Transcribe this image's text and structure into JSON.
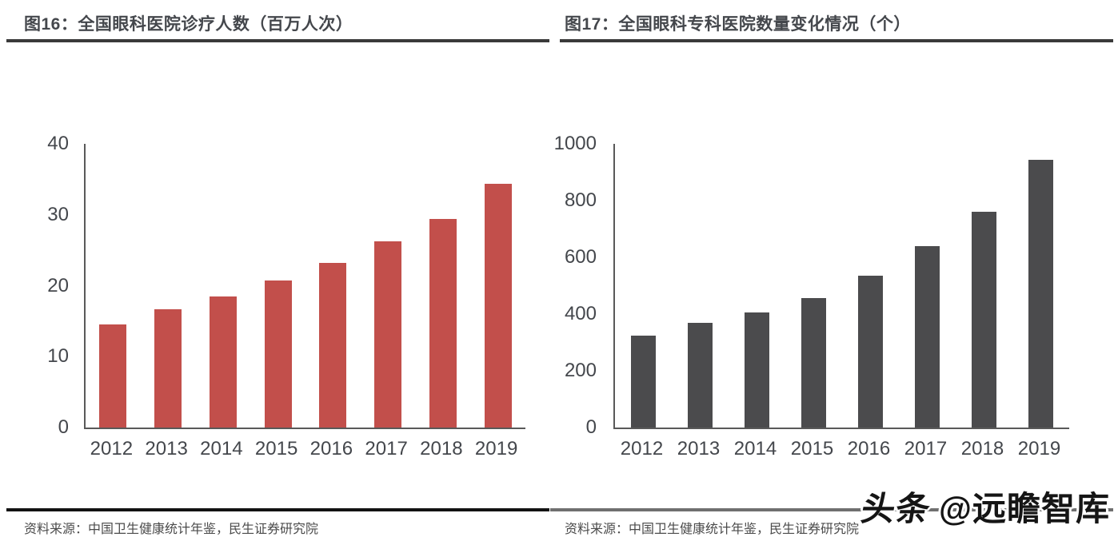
{
  "figures": [
    {
      "title": "图16：全国眼科医院诊疗人数（百万人次）",
      "source_label": "资料来源：中国卫生健康统计年鉴，民生证券研究院"
    },
    {
      "title": "图17：全国眼科专科医院数量变化情况（个）",
      "source_label": "资料来源：中国卫生健康统计年鉴，民生证券研究院"
    }
  ],
  "chart_data": [
    {
      "type": "bar",
      "title": "图16：全国眼科医院诊疗人数（百万人次）",
      "categories": [
        "2012",
        "2013",
        "2014",
        "2015",
        "2016",
        "2017",
        "2018",
        "2019"
      ],
      "values": [
        14.5,
        16.7,
        18.5,
        20.7,
        23.2,
        26.3,
        29.4,
        34.4
      ],
      "xlabel": "",
      "ylabel": "",
      "ylim": [
        0,
        40
      ],
      "yticks": [
        0,
        10,
        20,
        30,
        40
      ],
      "bar_color": "#c24f4b",
      "grid": false,
      "legend": "none"
    },
    {
      "type": "bar",
      "title": "图17：全国眼科专科医院数量变化情况（个）",
      "categories": [
        "2012",
        "2013",
        "2014",
        "2015",
        "2016",
        "2017",
        "2018",
        "2019"
      ],
      "values": [
        325,
        370,
        405,
        455,
        535,
        640,
        760,
        945
      ],
      "xlabel": "",
      "ylabel": "",
      "ylim": [
        0,
        1000
      ],
      "yticks": [
        0,
        200,
        400,
        600,
        800,
        1000
      ],
      "bar_color": "#4b4b4d",
      "grid": false,
      "legend": "none"
    }
  ],
  "watermark": {
    "prefix": "头条",
    "handle": "@远瞻智库"
  },
  "colors": {
    "left_bar": "#c24f4b",
    "right_bar": "#4b4b4d",
    "axis_line": "#595959",
    "title_text": "#44474c",
    "title_rule": "#3a3a3a",
    "bottom_rule_left": "#121212",
    "bottom_rule_right": "#6f6f6f"
  }
}
